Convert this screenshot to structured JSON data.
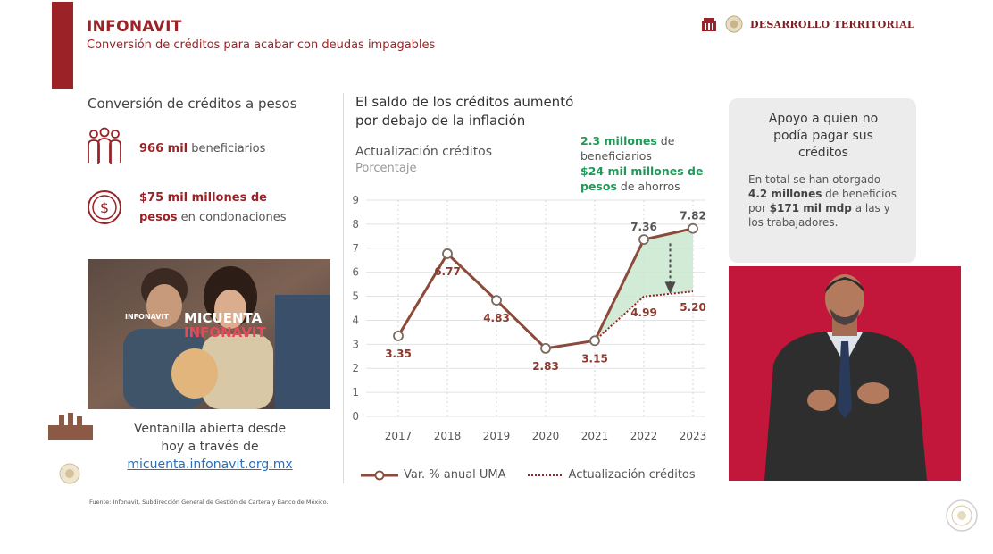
{
  "header": {
    "title": "INFONAVIT",
    "subtitle": "Conversión de créditos para acabar con deudas impagables",
    "brand_text": "DESARROLLO TERRITORIAL"
  },
  "left": {
    "section_title": "Conversión de créditos a pesos",
    "stat1": {
      "value": "966 mil",
      "text": " beneficiarios",
      "icon": "people-icon"
    },
    "stat2": {
      "value_line1": "$75 mil millones de",
      "value_line2": "pesos",
      "text": " en condonaciones",
      "icon": "dollar-coin-icon"
    },
    "photo": {
      "logo_text": "INFONAVIT",
      "brand_line1": "MICUENTA",
      "brand_line2": "INFONAVIT"
    },
    "window_line1": "Ventanilla abierta desde",
    "window_line2": "hoy a través de",
    "window_link": "micuenta.infonavit.org.mx",
    "source": "Fuente: Infonavit, Subdirección General de Gestión de Cartera y Banco de México."
  },
  "chart_header": {
    "title_line1": "El saldo de los créditos aumentó",
    "title_line2": "por debajo de la inflación",
    "subtitle": "Actualización créditos",
    "unit": "Porcentaje",
    "callout_bold1": "2.3 millones",
    "callout_text1": " de beneficiarios",
    "callout_bold2": "$24 mil millones de pesos",
    "callout_text2": " de ahorros"
  },
  "chart_data": {
    "type": "line",
    "categories": [
      "2017",
      "2018",
      "2019",
      "2020",
      "2021",
      "2022",
      "2023"
    ],
    "yticks": [
      "0",
      "1",
      "2",
      "3",
      "4",
      "5",
      "6",
      "7",
      "8",
      "9"
    ],
    "ylim": [
      0,
      9
    ],
    "grid": true,
    "series": [
      {
        "name": "Var. % anual UMA",
        "values": [
          3.35,
          6.77,
          4.83,
          2.83,
          3.15,
          7.36,
          7.82
        ],
        "labels": [
          "3.35",
          "6.77",
          "4.83",
          "2.83",
          "3.15",
          "7.36",
          "7.82"
        ],
        "color": "#8c4a3a"
      },
      {
        "name": "Actualización créditos",
        "x": [
          "2021",
          "2022",
          "2023"
        ],
        "values": [
          3.15,
          4.99,
          5.2
        ],
        "labels": [
          "4.99",
          "5.20"
        ],
        "color": "#9b2226"
      }
    ],
    "legend": [
      "Var. % anual UMA",
      "Actualización créditos"
    ],
    "legend_position": "bottom",
    "area_fill_color": "#c9e8cf"
  },
  "card": {
    "title_line1": "Apoyo a quien no",
    "title_line2": "podía pagar sus",
    "title_line3": "créditos",
    "body_text1": "En total se han otorgado ",
    "body_bold1": "4.2 millones",
    "body_text2": " de beneficios por ",
    "body_bold2": "$171 mil mdp",
    "body_text3": " a las y los trabajadores."
  },
  "colors": {
    "accent": "#9b2226",
    "green": "#1f9a57",
    "line": "#8c4a3a",
    "signer_bg": "#c3163b"
  }
}
